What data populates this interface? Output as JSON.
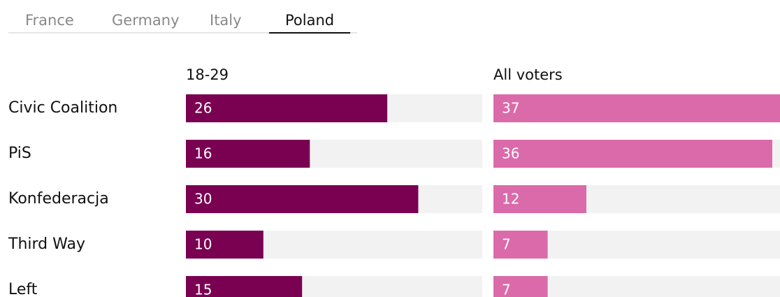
{
  "tabs": [
    "France",
    "Germany",
    "Italy",
    "Poland"
  ],
  "selected_tab_index": 3,
  "chart_data": {
    "type": "bar",
    "categories": [
      "Civic Coalition",
      "PiS",
      "Konfederacja",
      "Third Way",
      "Left"
    ],
    "series": [
      {
        "name": "18-29",
        "color": "#7a0052",
        "values": [
          26,
          16,
          30,
          10,
          15
        ]
      },
      {
        "name": "All voters",
        "color": "#db6aaa",
        "values": [
          37,
          36,
          12,
          7,
          7
        ]
      }
    ],
    "xlim": [
      0,
      37
    ]
  }
}
